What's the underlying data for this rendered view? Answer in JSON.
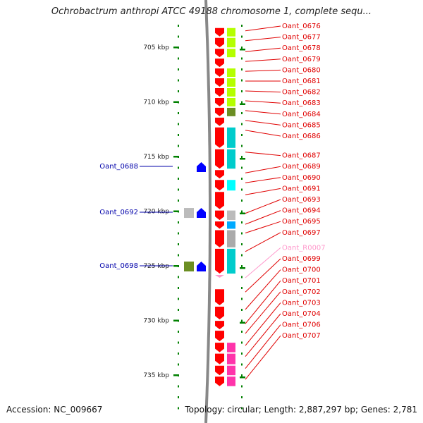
{
  "title": "Ochrobactrum anthropi ATCC 49188 chromosome 1, complete sequ...",
  "accession": "Accession: NC_009667",
  "summary": "Topology: circular; Length: 2,887,297 bp; Genes: 2,781",
  "colors": {
    "forward_gene": "#ff0000",
    "reverse_gene": "#0000ff",
    "rna_label": "#ff99cc",
    "ticks": "#008000",
    "backbone": "#888888"
  },
  "kbp_marks": [
    {
      "label": "705 kbp",
      "kbp": 705
    },
    {
      "label": "710 kbp",
      "kbp": 710
    },
    {
      "label": "715 kbp",
      "kbp": 715
    },
    {
      "label": "720 kbp",
      "kbp": 720
    },
    {
      "label": "725 kbp",
      "kbp": 725
    },
    {
      "label": "730 kbp",
      "kbp": 730
    },
    {
      "label": "735 kbp",
      "kbp": 735
    }
  ],
  "right_genes": [
    {
      "name": "Oant_0676",
      "kbp": 703.5,
      "cog": "#b4ff00"
    },
    {
      "name": "Oant_0677",
      "kbp": 704.4,
      "cog": "#b4ff00"
    },
    {
      "name": "Oant_0678",
      "kbp": 705.4,
      "cog": "#b4ff00"
    },
    {
      "name": "Oant_0679",
      "kbp": 706.3,
      "cog": ""
    },
    {
      "name": "Oant_0680",
      "kbp": 707.2,
      "cog": "#b4ff00"
    },
    {
      "name": "Oant_0681",
      "kbp": 708.1,
      "cog": "#b4ff00"
    },
    {
      "name": "Oant_0682",
      "kbp": 709.0,
      "cog": "#b4ff00"
    },
    {
      "name": "Oant_0683",
      "kbp": 709.9,
      "cog": "#b4ff00"
    },
    {
      "name": "Oant_0684",
      "kbp": 710.8,
      "cog": "#6b8e23"
    },
    {
      "name": "Oant_0685",
      "kbp": 711.7,
      "cog": ""
    },
    {
      "name": "Oant_0686",
      "kbp": 712.6,
      "cog": "#00cccc"
    },
    {
      "name": "Oant_0687",
      "kbp": 714.6,
      "cog": "#00cccc"
    },
    {
      "name": "Oant_0689",
      "kbp": 716.5,
      "cog": ""
    },
    {
      "name": "Oant_0690",
      "kbp": 717.4,
      "cog": "#00ffff"
    },
    {
      "name": "Oant_0691",
      "kbp": 718.5,
      "cog": ""
    },
    {
      "name": "Oant_0693",
      "kbp": 720.2,
      "cog": "#bbbbbb"
    },
    {
      "name": "Oant_0694",
      "kbp": 721.2,
      "cog": "#00aaff"
    },
    {
      "name": "Oant_0695",
      "kbp": 722.0,
      "cog": "#aaaaaa"
    },
    {
      "name": "Oant_0697",
      "kbp": 723.7,
      "cog": "#00cccc"
    },
    {
      "name": "Oant_R0007",
      "kbp": 726.1,
      "cog": "",
      "rna": true
    },
    {
      "name": "Oant_0699",
      "kbp": 727.4,
      "cog": ""
    },
    {
      "name": "Oant_0700",
      "kbp": 729.0,
      "cog": ""
    },
    {
      "name": "Oant_0701",
      "kbp": 730.3,
      "cog": ""
    },
    {
      "name": "Oant_0702",
      "kbp": 731.2,
      "cog": ""
    },
    {
      "name": "Oant_0703",
      "kbp": 732.3,
      "cog": "#ff33aa"
    },
    {
      "name": "Oant_0704",
      "kbp": 733.3,
      "cog": "#ff33aa"
    },
    {
      "name": "Oant_0706",
      "kbp": 734.4,
      "cog": "#ff33aa"
    },
    {
      "name": "Oant_0707",
      "kbp": 735.4,
      "cog": "#ff33aa"
    }
  ],
  "left_genes": [
    {
      "name": "Oant_0688",
      "kbp": 715.9,
      "cog": ""
    },
    {
      "name": "Oant_0692",
      "kbp": 720.1,
      "cog": "#bbbbbb"
    },
    {
      "name": "Oant_0698",
      "kbp": 725.0,
      "cog": "#6b8e23"
    }
  ]
}
